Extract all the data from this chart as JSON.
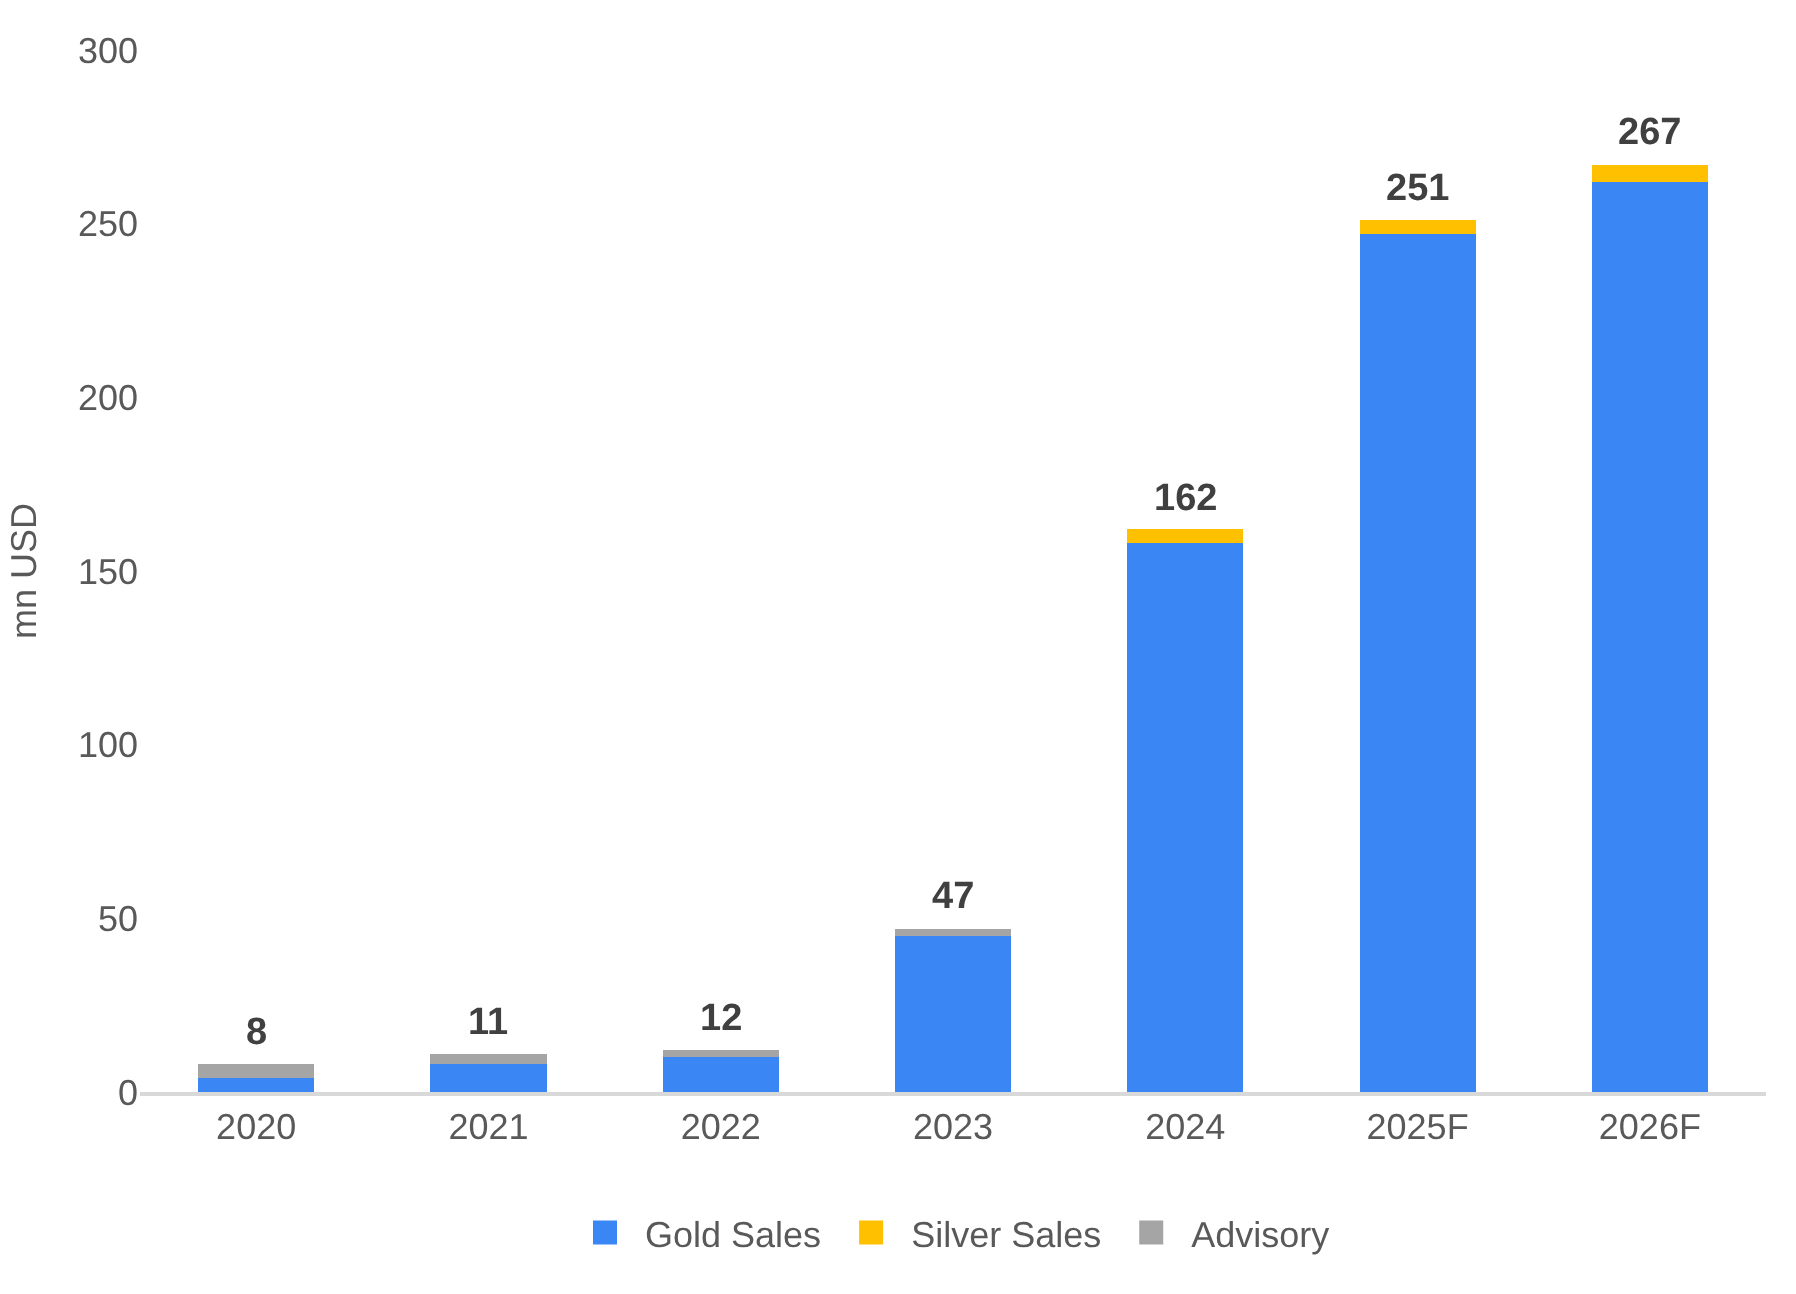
{
  "chart_data": {
    "type": "bar",
    "stacked": true,
    "ylabel": "mn USD",
    "categories": [
      "2020",
      "2021",
      "2022",
      "2023",
      "2024",
      "2025F",
      "2026F"
    ],
    "series": [
      {
        "name": "Gold Sales",
        "color": "#3a86f5",
        "values": [
          4,
          8,
          10,
          45,
          158,
          247,
          262
        ]
      },
      {
        "name": "Silver Sales",
        "color": "#ffc000",
        "values": [
          0,
          0,
          0,
          0,
          4,
          4,
          5
        ]
      },
      {
        "name": "Advisory",
        "color": "#a5a5a5",
        "values": [
          4,
          3,
          2,
          2,
          0,
          0,
          0
        ]
      }
    ],
    "totals": [
      "8",
      "11",
      "12",
      "47",
      "162",
      "251",
      "267"
    ],
    "ylim": [
      0,
      300
    ],
    "yticks": [
      0,
      50,
      100,
      150,
      200,
      250,
      300
    ],
    "legend": "bottom"
  }
}
